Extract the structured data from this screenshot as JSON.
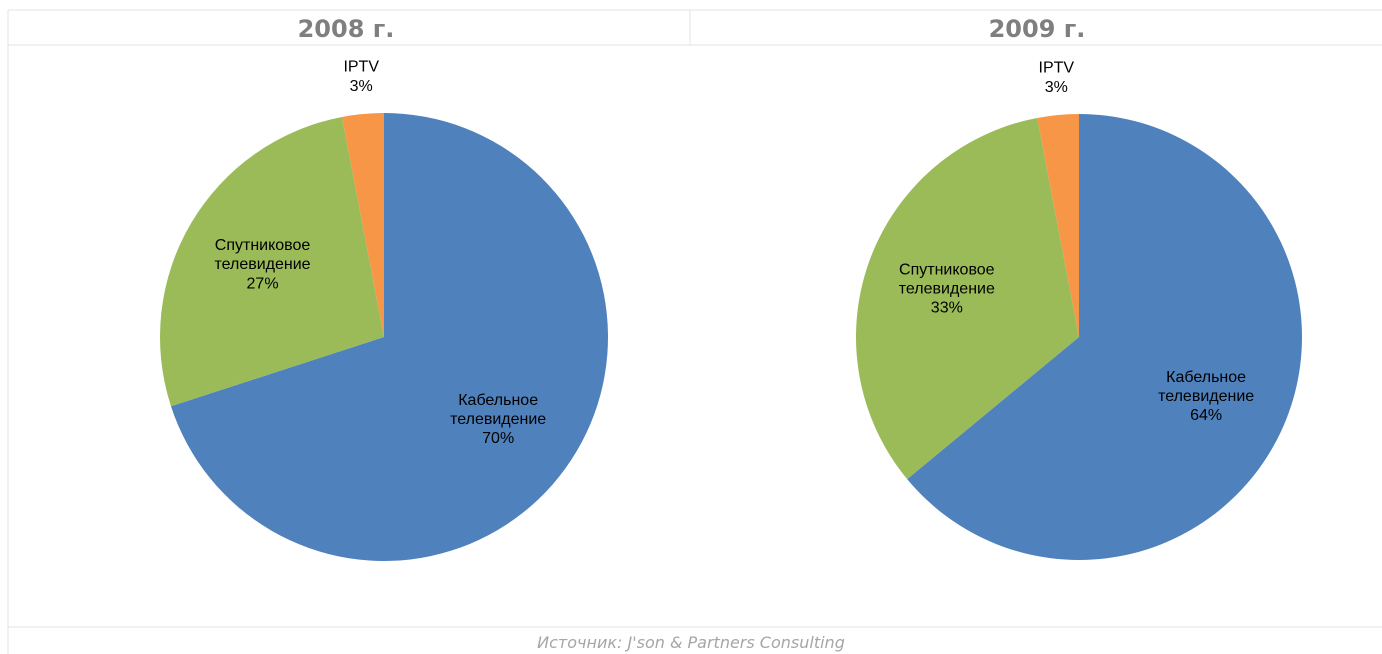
{
  "chart_data": [
    {
      "type": "pie",
      "title": "2008 г.",
      "categories": [
        "Кабельное телевидение",
        "Спутниковое телевидение",
        "IPTV"
      ],
      "values": [
        70,
        27,
        3
      ],
      "value_labels": [
        "70%",
        "27%",
        "3%"
      ],
      "colors": [
        "#4f81bd",
        "#9bbb59",
        "#f79646"
      ]
    },
    {
      "type": "pie",
      "title": "2009 г.",
      "categories": [
        "Кабельное телевидение",
        "Спутниковое телевидение",
        "IPTV"
      ],
      "values": [
        64,
        33,
        3
      ],
      "value_labels": [
        "64%",
        "33%",
        "3%"
      ],
      "colors": [
        "#4f81bd",
        "#9bbb59",
        "#f79646"
      ]
    }
  ],
  "source": "Источник: J'son & Partners Consulting"
}
